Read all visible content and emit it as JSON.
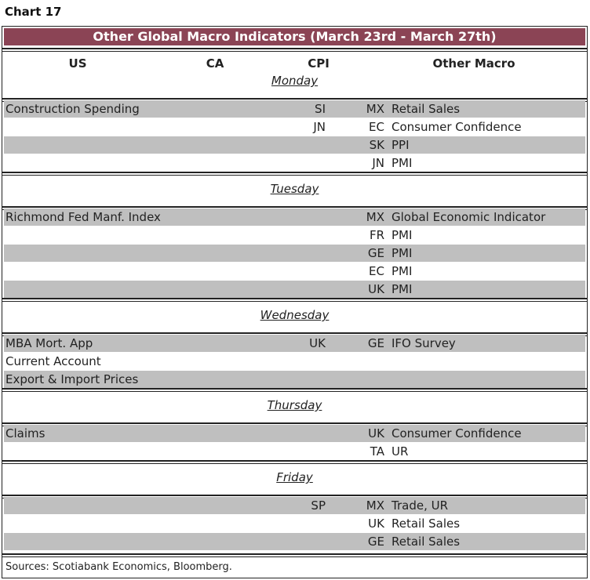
{
  "chart_label": "Chart 17",
  "title": "Other Global Macro Indicators (March 23rd - March 27th)",
  "colors": {
    "title_bg": "#8b4455",
    "shaded_row": "#bfbfbf"
  },
  "headers": [
    "US",
    "CA",
    "CPI",
    "Other Macro"
  ],
  "sections": [
    {
      "day": "Monday",
      "rows": [
        {
          "us": "Construction Spending",
          "cpi": "SI",
          "code": "MX",
          "desc": "Retail Sales"
        },
        {
          "us": "",
          "cpi": "JN",
          "code": "EC",
          "desc": "Consumer Confidence"
        },
        {
          "us": "",
          "cpi": "",
          "code": "SK",
          "desc": "PPI"
        },
        {
          "us": "",
          "cpi": "",
          "code": "JN",
          "desc": "PMI"
        }
      ]
    },
    {
      "day": "Tuesday",
      "rows": [
        {
          "us": "Richmond Fed Manf. Index",
          "cpi": "",
          "code": "MX",
          "desc": "Global Economic Indicator"
        },
        {
          "us": "",
          "cpi": "",
          "code": "FR",
          "desc": "PMI"
        },
        {
          "us": "",
          "cpi": "",
          "code": "GE",
          "desc": "PMI"
        },
        {
          "us": "",
          "cpi": "",
          "code": "EC",
          "desc": "PMI"
        },
        {
          "us": "",
          "cpi": "",
          "code": "UK",
          "desc": "PMI"
        }
      ]
    },
    {
      "day": "Wednesday",
      "rows": [
        {
          "us": "MBA Mort. App",
          "cpi": "UK",
          "code": "GE",
          "desc": "IFO Survey"
        },
        {
          "us": "Current Account",
          "cpi": "",
          "code": "",
          "desc": ""
        },
        {
          "us": "Export & Import Prices",
          "cpi": "",
          "code": "",
          "desc": ""
        }
      ]
    },
    {
      "day": "Thursday",
      "rows": [
        {
          "us": "Claims",
          "cpi": "",
          "code": "UK",
          "desc": "Consumer Confidence"
        },
        {
          "us": "",
          "cpi": "",
          "code": "TA",
          "desc": "UR"
        }
      ]
    },
    {
      "day": "Friday",
      "rows": [
        {
          "us": "",
          "cpi": "SP",
          "code": "MX",
          "desc": "Trade, UR"
        },
        {
          "us": "",
          "cpi": "",
          "code": "UK",
          "desc": "Retail Sales"
        },
        {
          "us": "",
          "cpi": "",
          "code": "GE",
          "desc": "Retail Sales"
        }
      ]
    }
  ],
  "sources": "Sources: Scotiabank Economics, Bloomberg."
}
